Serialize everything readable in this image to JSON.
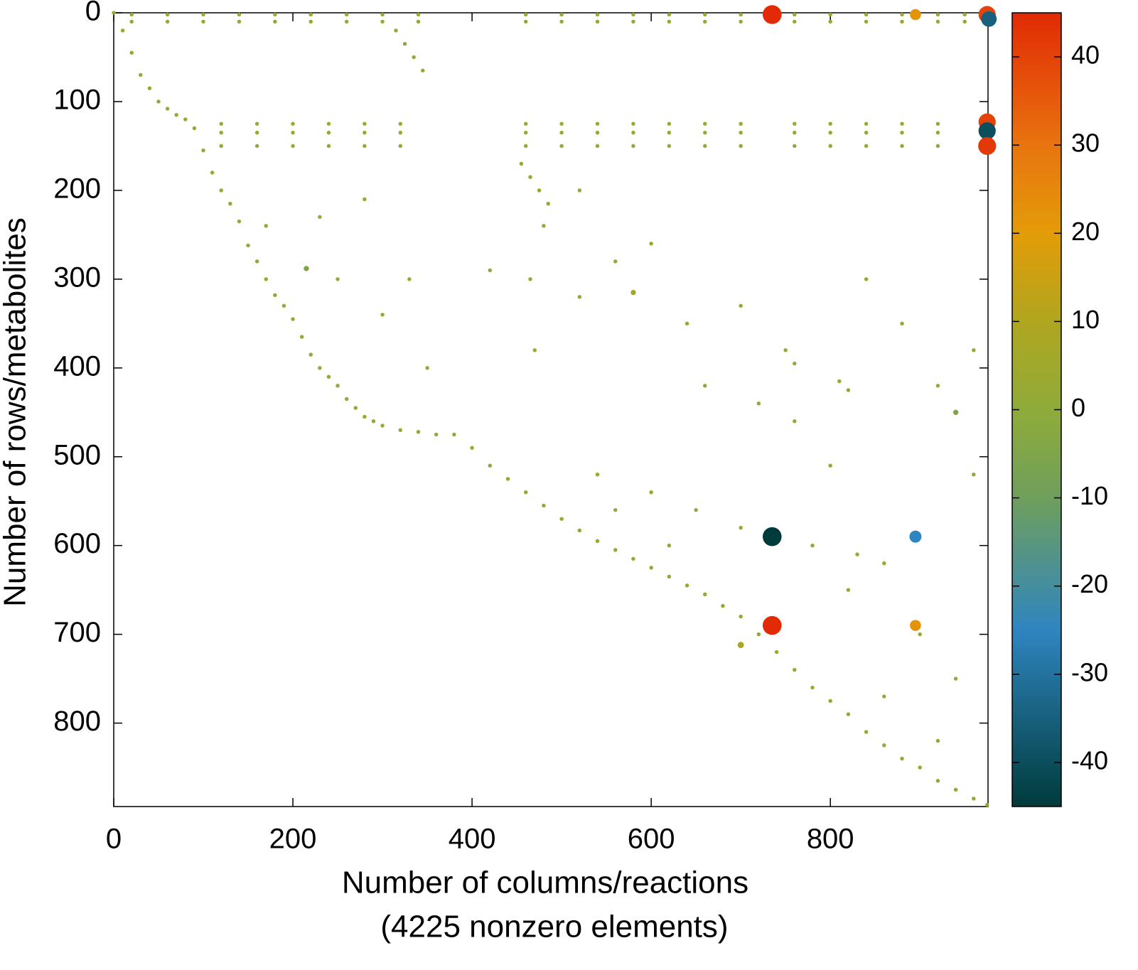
{
  "chart_data": {
    "type": "scatter",
    "x_label": [
      "Number of columns/reactions",
      "(4225 nonzero elements)"
    ],
    "y_label": "Number of rows/metabolites",
    "xlim": [
      0,
      976
    ],
    "ylim": [
      894,
      0
    ],
    "xticks": [
      0,
      200,
      400,
      600,
      800
    ],
    "yticks": [
      0,
      100,
      200,
      300,
      400,
      500,
      600,
      700,
      800
    ],
    "clim": [
      -45,
      45
    ],
    "cticks": [
      -40,
      -30,
      -20,
      -10,
      0,
      10,
      20,
      30,
      40
    ],
    "colormap": [
      {
        "value": -45,
        "color": "#003b3b"
      },
      {
        "value": -25,
        "color": "#2f85c0"
      },
      {
        "value": -10,
        "color": "#6f9f5c"
      },
      {
        "value": 0,
        "color": "#8fab3a"
      },
      {
        "value": 10,
        "color": "#b0a620"
      },
      {
        "value": 20,
        "color": "#e39c08"
      },
      {
        "value": 30,
        "color": "#e8740f"
      },
      {
        "value": 45,
        "color": "#e22a05"
      }
    ],
    "x": [
      0,
      10,
      20,
      30,
      40,
      50,
      60,
      70,
      80,
      90,
      100,
      110,
      120,
      130,
      140,
      150,
      160,
      170,
      180,
      190,
      200,
      210,
      220,
      230,
      240,
      250,
      260,
      270,
      280,
      290,
      300,
      320,
      340,
      360,
      380,
      400,
      420,
      440,
      460,
      480,
      500,
      520,
      540,
      560,
      580,
      600,
      620,
      640,
      660,
      680,
      700,
      720,
      740,
      760,
      780,
      800,
      820,
      840,
      860,
      880,
      900,
      920,
      940,
      960,
      975,
      20,
      60,
      100,
      140,
      180,
      220,
      260,
      300,
      340,
      460,
      500,
      540,
      580,
      620,
      660,
      700,
      760,
      800,
      840,
      880,
      920,
      950,
      20,
      60,
      100,
      140,
      180,
      220,
      260,
      300,
      340,
      460,
      500,
      540,
      580,
      620,
      660,
      700,
      760,
      800,
      840,
      880,
      920,
      950,
      120,
      160,
      200,
      240,
      280,
      320,
      460,
      500,
      540,
      580,
      620,
      660,
      700,
      760,
      800,
      840,
      880,
      920,
      120,
      160,
      200,
      240,
      280,
      320,
      460,
      500,
      540,
      580,
      620,
      660,
      700,
      760,
      800,
      840,
      880,
      920,
      120,
      160,
      200,
      240,
      280,
      320,
      460,
      500,
      540,
      580,
      620,
      660,
      700,
      760,
      800,
      840,
      880,
      920,
      170,
      230,
      250,
      280,
      420,
      465,
      470,
      520,
      560,
      600,
      640,
      660,
      700,
      720,
      760,
      800,
      840,
      880,
      920,
      960,
      540,
      600,
      650,
      700,
      780,
      820,
      860,
      900,
      940,
      830,
      960,
      330,
      350,
      300,
      560,
      620,
      860,
      920,
      480,
      520,
      315,
      325,
      335,
      345,
      455,
      465,
      475,
      485,
      750,
      760,
      820,
      810,
      735,
      895,
      975,
      977,
      975,
      975,
      975,
      735,
      895,
      735,
      895,
      940,
      215,
      580,
      700
    ],
    "y": [
      0,
      20,
      45,
      70,
      85,
      100,
      108,
      115,
      120,
      130,
      155,
      180,
      200,
      215,
      235,
      262,
      280,
      300,
      318,
      330,
      345,
      365,
      385,
      400,
      410,
      420,
      435,
      445,
      455,
      460,
      465,
      470,
      472,
      475,
      475,
      490,
      510,
      525,
      540,
      555,
      570,
      583,
      595,
      605,
      615,
      625,
      635,
      645,
      655,
      668,
      680,
      700,
      720,
      740,
      760,
      775,
      790,
      810,
      825,
      840,
      850,
      865,
      875,
      885,
      892,
      2,
      2,
      2,
      2,
      2,
      2,
      2,
      2,
      2,
      2,
      2,
      2,
      2,
      2,
      2,
      2,
      2,
      2,
      2,
      2,
      2,
      2,
      10,
      10,
      10,
      10,
      10,
      10,
      10,
      10,
      10,
      10,
      10,
      10,
      10,
      10,
      10,
      10,
      10,
      10,
      10,
      10,
      10,
      10,
      125,
      125,
      125,
      125,
      125,
      125,
      125,
      125,
      125,
      125,
      125,
      125,
      125,
      125,
      125,
      125,
      125,
      125,
      135,
      135,
      135,
      135,
      135,
      135,
      135,
      135,
      135,
      135,
      135,
      135,
      135,
      135,
      135,
      135,
      135,
      135,
      150,
      150,
      150,
      150,
      150,
      150,
      150,
      150,
      150,
      150,
      150,
      150,
      150,
      150,
      150,
      150,
      150,
      150,
      240,
      230,
      300,
      210,
      290,
      300,
      380,
      200,
      280,
      260,
      350,
      420,
      330,
      440,
      460,
      510,
      300,
      350,
      420,
      520,
      520,
      540,
      560,
      580,
      600,
      650,
      620,
      700,
      750,
      610,
      380,
      300,
      400,
      340,
      560,
      600,
      770,
      820,
      240,
      320,
      20,
      35,
      50,
      65,
      170,
      185,
      200,
      215,
      380,
      395,
      425,
      415,
      2,
      2,
      2,
      7,
      123,
      133,
      150,
      590,
      590,
      690,
      690,
      450,
      288,
      315,
      712
    ],
    "values": [
      1,
      1,
      1,
      1,
      1,
      1,
      1,
      1,
      1,
      1,
      1,
      1,
      1,
      1,
      1,
      1,
      1,
      1,
      1,
      1,
      1,
      1,
      1,
      1,
      1,
      1,
      1,
      1,
      1,
      1,
      1,
      1,
      1,
      1,
      1,
      1,
      1,
      1,
      1,
      1,
      1,
      1,
      1,
      1,
      1,
      1,
      1,
      1,
      1,
      1,
      1,
      1,
      1,
      1,
      1,
      1,
      1,
      1,
      1,
      1,
      1,
      1,
      1,
      1,
      1,
      1,
      1,
      1,
      1,
      1,
      1,
      1,
      1,
      1,
      1,
      1,
      1,
      1,
      1,
      1,
      1,
      1,
      1,
      1,
      1,
      1,
      1,
      1,
      1,
      1,
      1,
      1,
      1,
      1,
      1,
      1,
      1,
      1,
      1,
      1,
      1,
      1,
      1,
      1,
      1,
      1,
      1,
      1,
      1,
      1,
      1,
      1,
      1,
      1,
      1,
      1,
      1,
      1,
      1,
      1,
      1,
      1,
      1,
      1,
      1,
      1,
      1,
      1,
      1,
      1,
      1,
      1,
      1,
      1,
      1,
      1,
      1,
      1,
      1,
      1,
      1,
      1,
      1,
      1,
      1,
      1,
      1,
      1,
      1,
      1,
      1,
      1,
      1,
      1,
      1,
      1,
      1,
      1,
      1,
      1,
      1,
      1,
      1,
      1,
      1,
      1,
      1,
      1,
      1,
      1,
      1,
      1,
      1,
      1,
      1,
      1,
      1,
      1,
      1,
      1,
      1,
      1,
      1,
      1,
      1,
      1,
      1,
      1,
      1,
      1,
      1,
      1,
      1,
      1,
      1,
      1,
      1,
      1,
      1,
      1,
      1,
      1,
      1,
      1,
      1,
      1,
      1,
      1,
      1,
      1,
      1,
      1,
      1,
      1,
      1,
      45,
      22,
      40,
      -35,
      40,
      -40,
      42,
      -45,
      -25,
      45,
      22,
      -5,
      -5,
      5,
      8
    ]
  }
}
